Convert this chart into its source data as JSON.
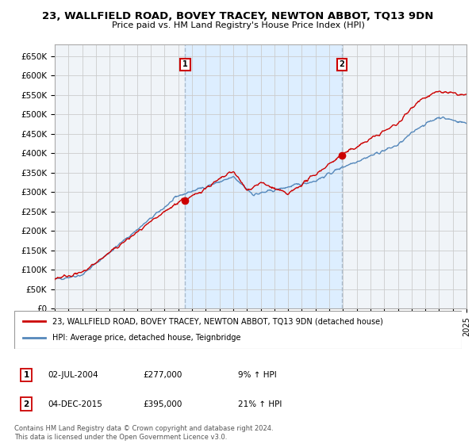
{
  "title": "23, WALLFIELD ROAD, BOVEY TRACEY, NEWTON ABBOT, TQ13 9DN",
  "subtitle": "Price paid vs. HM Land Registry's House Price Index (HPI)",
  "legend_line1": "23, WALLFIELD ROAD, BOVEY TRACEY, NEWTON ABBOT, TQ13 9DN (detached house)",
  "legend_line2": "HPI: Average price, detached house, Teignbridge",
  "annotation1_label": "1",
  "annotation1_date": "02-JUL-2004",
  "annotation1_price": "£277,000",
  "annotation1_hpi": "9% ↑ HPI",
  "annotation1_year": 2004.5,
  "annotation1_value": 277000,
  "annotation2_label": "2",
  "annotation2_date": "04-DEC-2015",
  "annotation2_price": "£395,000",
  "annotation2_hpi": "21% ↑ HPI",
  "annotation2_year": 2015.92,
  "annotation2_value": 395000,
  "red_color": "#cc0000",
  "blue_color": "#5588bb",
  "shade_color": "#ddeeff",
  "vline_color": "#aabbcc",
  "grid_color": "#cccccc",
  "background_color": "#ffffff",
  "plot_bg_color": "#f0f4f8",
  "footer_text": "Contains HM Land Registry data © Crown copyright and database right 2024.\nThis data is licensed under the Open Government Licence v3.0.",
  "ylim": [
    0,
    680000
  ],
  "yticks": [
    0,
    50000,
    100000,
    150000,
    200000,
    250000,
    300000,
    350000,
    400000,
    450000,
    500000,
    550000,
    600000,
    650000
  ],
  "ytick_labels": [
    "£0",
    "£50K",
    "£100K",
    "£150K",
    "£200K",
    "£250K",
    "£300K",
    "£350K",
    "£400K",
    "£450K",
    "£500K",
    "£550K",
    "£600K",
    "£650K"
  ],
  "xmin": 1995,
  "xmax": 2025
}
